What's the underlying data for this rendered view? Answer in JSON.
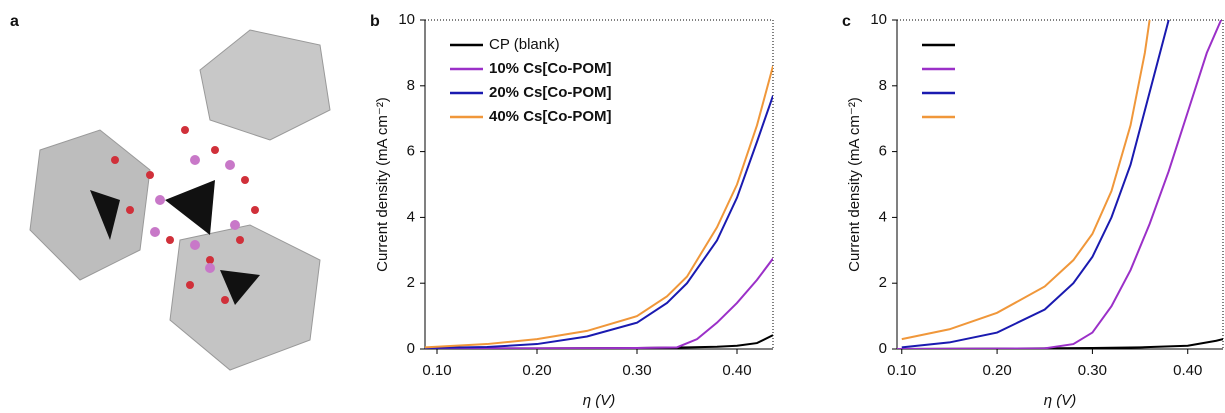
{
  "image_panel": {
    "label": "a"
  },
  "chart_data": [
    {
      "type": "line",
      "panel": "b",
      "xlabel": "η (V)",
      "ylabel": "Current density (mA cm⁻²)",
      "xlim": [
        0.088,
        0.436
      ],
      "ylim": [
        0,
        10
      ],
      "xticks": [
        {
          "value": 0.1,
          "label": "0.10"
        },
        {
          "value": 0.2,
          "label": "0.20"
        },
        {
          "value": 0.3,
          "label": "0.30"
        },
        {
          "value": 0.4,
          "label": "0.40"
        }
      ],
      "yticks": [
        0,
        2,
        4,
        6,
        8,
        10
      ],
      "legend": "upper left",
      "series": [
        {
          "name": "CP (blank)",
          "color": "#000000",
          "x": [
            0.088,
            0.2,
            0.3,
            0.35,
            0.38,
            0.4,
            0.42,
            0.436
          ],
          "values": [
            0.01,
            0.02,
            0.03,
            0.05,
            0.07,
            0.1,
            0.18,
            0.42
          ]
        },
        {
          "name": "10% Cs[Co-POM]",
          "color": "#9b30c8",
          "x": [
            0.088,
            0.2,
            0.3,
            0.34,
            0.36,
            0.38,
            0.4,
            0.42,
            0.436
          ],
          "values": [
            0.02,
            0.02,
            0.03,
            0.05,
            0.3,
            0.8,
            1.4,
            2.1,
            2.75
          ]
        },
        {
          "name": "20% Cs[Co-POM]",
          "color": "#1a1ab0",
          "x": [
            0.088,
            0.15,
            0.2,
            0.25,
            0.3,
            0.33,
            0.35,
            0.38,
            0.4,
            0.42,
            0.436
          ],
          "values": [
            0.03,
            0.06,
            0.15,
            0.38,
            0.8,
            1.4,
            2.0,
            3.3,
            4.6,
            6.3,
            7.7
          ]
        },
        {
          "name": "40% Cs[Co-POM]",
          "color": "#f0973a",
          "x": [
            0.088,
            0.15,
            0.2,
            0.25,
            0.3,
            0.33,
            0.35,
            0.38,
            0.4,
            0.42,
            0.436
          ],
          "values": [
            0.05,
            0.15,
            0.3,
            0.55,
            1.0,
            1.6,
            2.2,
            3.7,
            5.0,
            6.8,
            8.6
          ]
        }
      ]
    },
    {
      "type": "line",
      "panel": "c",
      "xlabel": "η (V)",
      "ylabel": "Current density (mA cm⁻²)",
      "xlim": [
        0.095,
        0.437
      ],
      "ylim": [
        0,
        10
      ],
      "xticks": [
        {
          "value": 0.1,
          "label": "0.10"
        },
        {
          "value": 0.2,
          "label": "0.20"
        },
        {
          "value": 0.3,
          "label": "0.30"
        },
        {
          "value": 0.4,
          "label": "0.40"
        }
      ],
      "yticks": [
        0,
        2,
        4,
        6,
        8,
        10
      ],
      "legend": "upper left",
      "series": [
        {
          "color": "#000000",
          "x": [
            0.095,
            0.2,
            0.3,
            0.35,
            0.4,
            0.43,
            0.437
          ],
          "values": [
            0.0,
            0.01,
            0.03,
            0.05,
            0.1,
            0.25,
            0.3
          ]
        },
        {
          "color": "#9b30c8",
          "x": [
            0.095,
            0.2,
            0.25,
            0.28,
            0.3,
            0.32,
            0.34,
            0.36,
            0.38,
            0.4,
            0.42,
            0.435
          ],
          "values": [
            0.0,
            0.01,
            0.02,
            0.15,
            0.5,
            1.3,
            2.4,
            3.8,
            5.4,
            7.2,
            9.0,
            10
          ]
        },
        {
          "color": "#1a1ab0",
          "x": [
            0.1,
            0.15,
            0.2,
            0.25,
            0.28,
            0.3,
            0.32,
            0.34,
            0.36,
            0.38
          ],
          "values": [
            0.05,
            0.2,
            0.5,
            1.2,
            2.0,
            2.8,
            4.0,
            5.6,
            7.8,
            10
          ]
        },
        {
          "color": "#f0973a",
          "x": [
            0.1,
            0.15,
            0.2,
            0.25,
            0.28,
            0.3,
            0.32,
            0.34,
            0.355,
            0.36
          ],
          "values": [
            0.3,
            0.6,
            1.1,
            1.9,
            2.7,
            3.5,
            4.8,
            6.8,
            9.0,
            10
          ]
        }
      ]
    }
  ]
}
